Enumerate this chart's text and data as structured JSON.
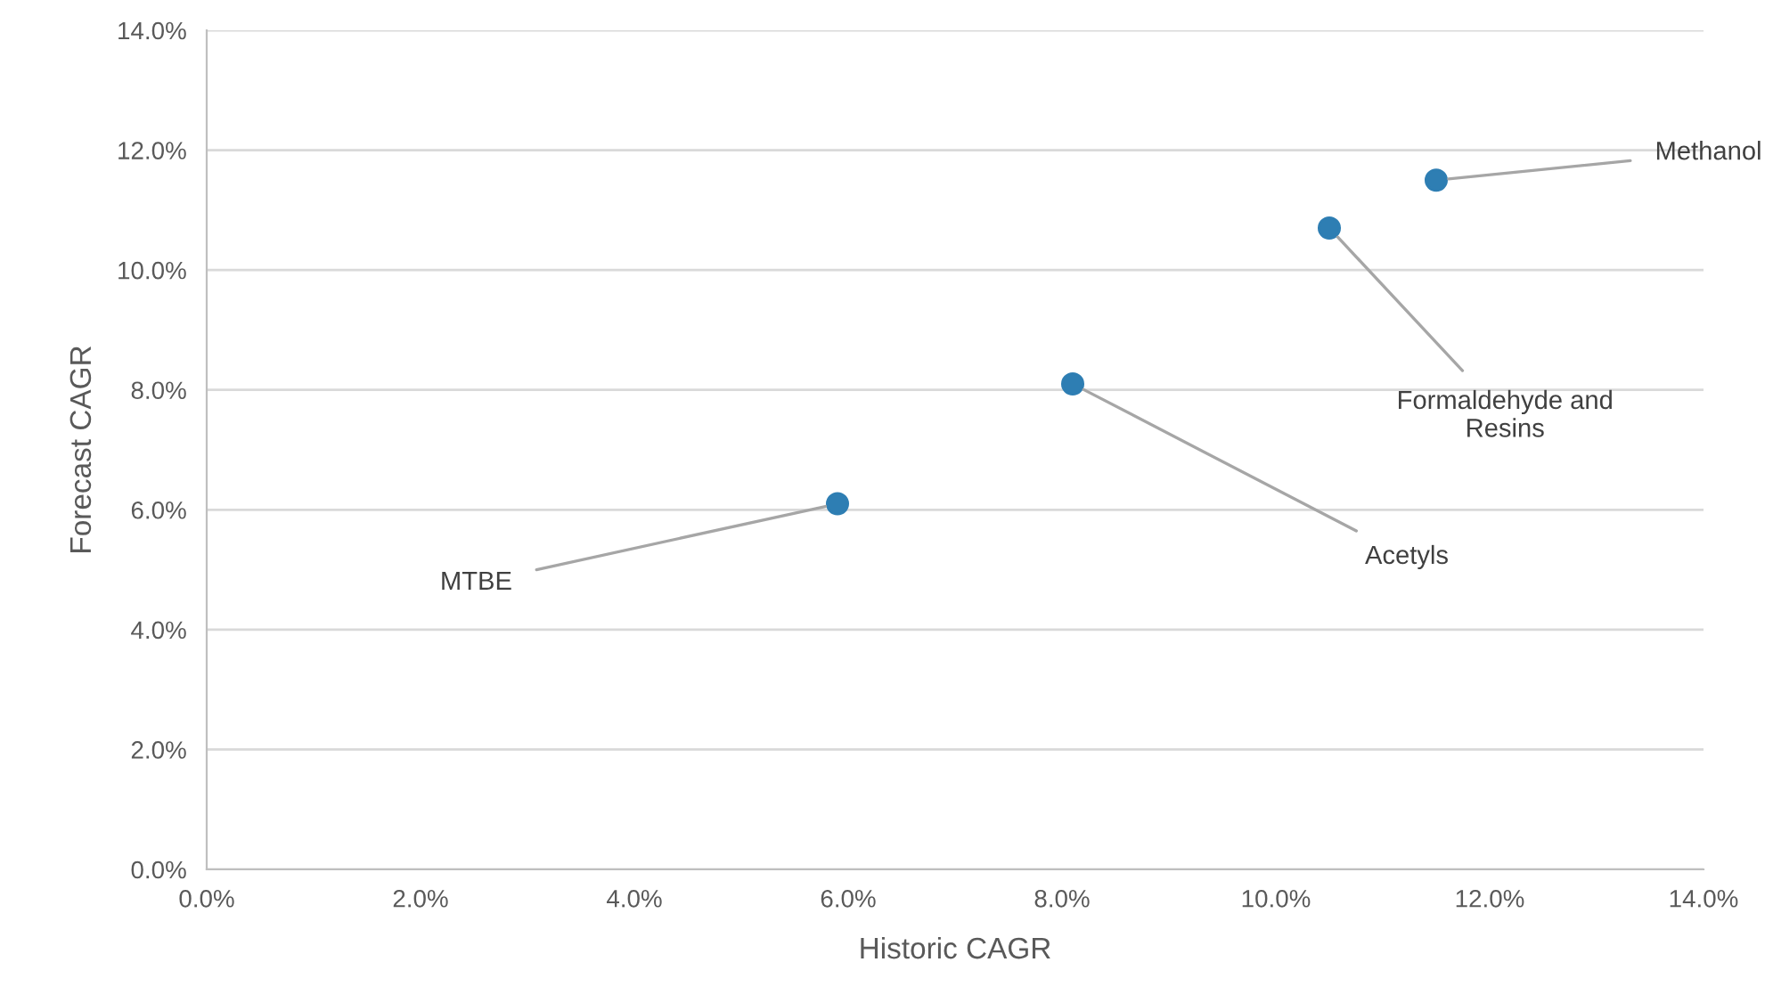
{
  "chart_data": {
    "type": "scatter",
    "xlabel": "Historic CAGR",
    "ylabel": "Forecast CAGR",
    "x": [
      5.9,
      8.1,
      10.5,
      11.5
    ],
    "series": [
      {
        "color": "#2e7eb3",
        "values": [
          6.1,
          8.1,
          10.7,
          11.5
        ]
      }
    ],
    "marker": "circle",
    "grid": "y",
    "legend": false,
    "xlim": [
      0,
      14
    ],
    "ylim": [
      0,
      14
    ],
    "xticks": [
      {
        "value": 0,
        "label": "0.0%"
      },
      {
        "value": 2,
        "label": "2.0%"
      },
      {
        "value": 4,
        "label": "4.0%"
      },
      {
        "value": 6,
        "label": "6.0%"
      },
      {
        "value": 8,
        "label": "8.0%"
      },
      {
        "value": 10,
        "label": "10.0%"
      },
      {
        "value": 12,
        "label": "12.0%"
      },
      {
        "value": 14,
        "label": "14.0%"
      }
    ],
    "yticks": [
      {
        "value": 0,
        "label": "0.0%"
      },
      {
        "value": 2,
        "label": "2.0%"
      },
      {
        "value": 4,
        "label": "4.0%"
      },
      {
        "value": 6,
        "label": "6.0%"
      },
      {
        "value": 8,
        "label": "8.0%"
      },
      {
        "value": 10,
        "label": "10.0%"
      },
      {
        "value": 12,
        "label": "12.0%"
      },
      {
        "value": 14,
        "label": "14.0%"
      }
    ],
    "annotations": [
      {
        "text": "MTBE",
        "x": 5.9,
        "y": 6.1
      },
      {
        "text": "Acetyls",
        "x": 8.1,
        "y": 8.1
      },
      {
        "text": "Formaldehyde and\nResins",
        "x": 10.5,
        "y": 10.7
      },
      {
        "text": "Methanol",
        "x": 11.5,
        "y": 11.5
      }
    ]
  }
}
